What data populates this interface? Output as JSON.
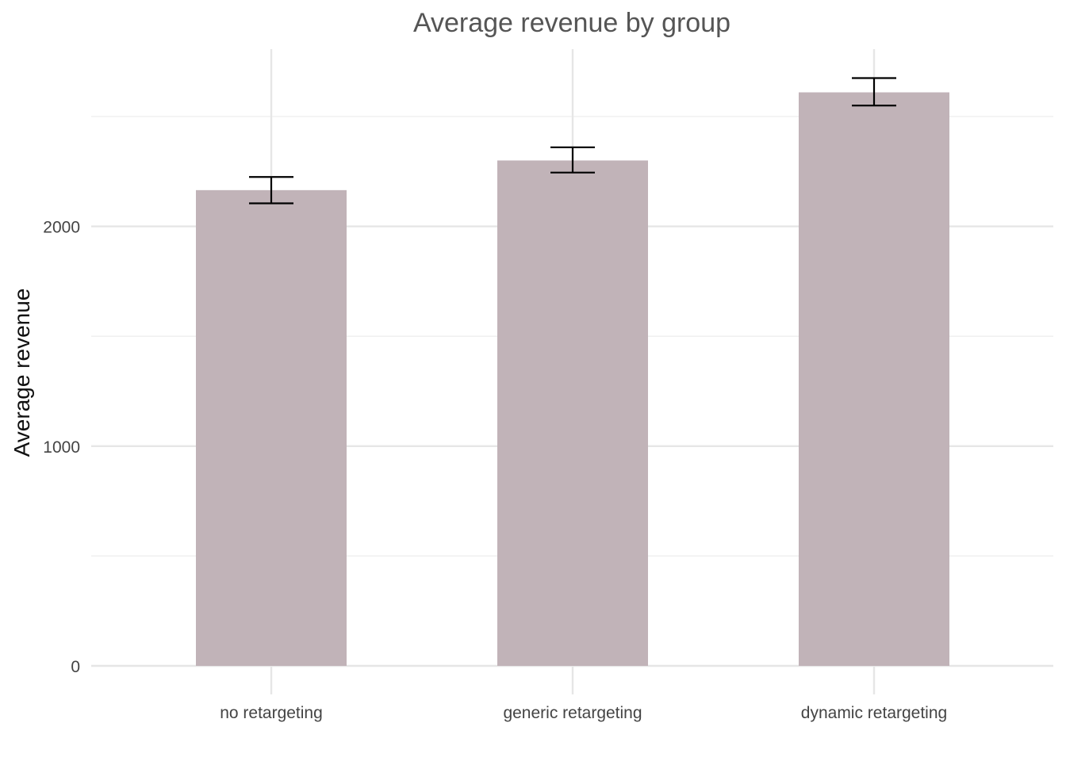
{
  "chart_data": {
    "type": "bar",
    "title": "Average revenue by group",
    "xlabel": "",
    "ylabel": "Average revenue",
    "categories": [
      "no retargeting",
      "generic retargeting",
      "dynamic retargeting"
    ],
    "values": [
      2165,
      2300,
      2610
    ],
    "error_low": [
      2105,
      2245,
      2550
    ],
    "error_high": [
      2225,
      2360,
      2675
    ],
    "yticks": [
      0,
      1000,
      2000
    ],
    "yticks_minor": [
      500,
      1500,
      2500
    ],
    "ylim": [
      0,
      2800
    ],
    "grid": true,
    "colors": {
      "bar": "#c1b3b8",
      "error": "#000000",
      "grid": "#e6e6e6"
    }
  }
}
